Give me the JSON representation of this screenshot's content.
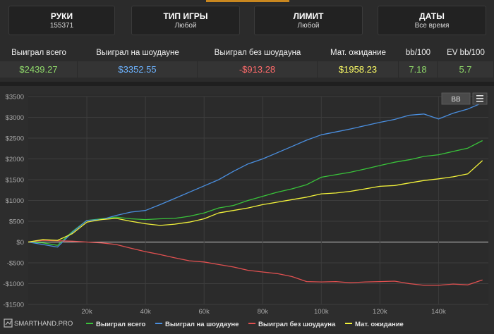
{
  "filters": [
    {
      "title": "РУКИ",
      "value": "155371"
    },
    {
      "title": "ТИП ИГРЫ",
      "value": "Любой"
    },
    {
      "title": "ЛИМИТ",
      "value": "Любой"
    },
    {
      "title": "ДАТЫ",
      "value": "Все время"
    }
  ],
  "stats": {
    "headers": [
      "Выиграл всего",
      "Выиграл на шоудауне",
      "Выиграл без шоудауна",
      "Мат. ожидание",
      "bb/100",
      "EV bb/100"
    ],
    "values": [
      "$2439.27",
      "$3352.55",
      "-$913.28",
      "$1958.23",
      "7.18",
      "5.7"
    ]
  },
  "toolbar": {
    "bb_label": "BB",
    "menu_icon": "menu-icon"
  },
  "branding": {
    "logo_text": "SMARTHAND.PRO"
  },
  "colors": {
    "green": "#39c33a",
    "blue": "#4a8fe0",
    "red": "#e05050",
    "yellow": "#f3f33a",
    "stat_green": "#8fd96a",
    "stat_blue": "#6db3ff",
    "stat_red": "#ff6b6b",
    "stat_yellow": "#ffff66"
  },
  "chart_data": {
    "type": "line",
    "title": "",
    "xlabel": "",
    "ylabel": "",
    "xlim": [
      0,
      157000
    ],
    "ylim": [
      -1500,
      3500
    ],
    "x_ticks": [
      20000,
      40000,
      60000,
      80000,
      100000,
      120000,
      140000
    ],
    "x_tick_labels": [
      "20k",
      "40k",
      "60k",
      "80k",
      "100k",
      "120k",
      "140k"
    ],
    "y_ticks": [
      3500,
      3000,
      2500,
      2000,
      1500,
      1000,
      500,
      0,
      -500,
      -1000,
      -1500
    ],
    "y_tick_labels": [
      "$3500",
      "$3000",
      "$2500",
      "$2000",
      "$1500",
      "$1000",
      "$500",
      "$0",
      "-$500",
      "-$1000",
      "-$1500"
    ],
    "grid": true,
    "legend_position": "bottom",
    "series": [
      {
        "name": "Выиграл всего",
        "color": "#39c33a",
        "x": [
          0,
          5000,
          10000,
          15000,
          20000,
          25000,
          30000,
          35000,
          40000,
          45000,
          50000,
          55000,
          60000,
          65000,
          70000,
          75000,
          80000,
          85000,
          90000,
          95000,
          100000,
          105000,
          110000,
          115000,
          120000,
          125000,
          130000,
          135000,
          140000,
          145000,
          150000,
          155000
        ],
        "y": [
          0,
          -20,
          -80,
          250,
          520,
          560,
          600,
          560,
          540,
          560,
          570,
          620,
          700,
          820,
          880,
          1000,
          1100,
          1200,
          1280,
          1380,
          1560,
          1620,
          1680,
          1760,
          1840,
          1920,
          1980,
          2060,
          2100,
          2180,
          2260,
          2440
        ]
      },
      {
        "name": "Выиграл на шоудауне",
        "color": "#4a8fe0",
        "x": [
          0,
          5000,
          10000,
          15000,
          20000,
          25000,
          30000,
          35000,
          40000,
          45000,
          50000,
          55000,
          60000,
          65000,
          70000,
          75000,
          80000,
          85000,
          90000,
          95000,
          100000,
          105000,
          110000,
          115000,
          120000,
          125000,
          130000,
          135000,
          140000,
          145000,
          150000,
          155000
        ],
        "y": [
          0,
          -60,
          -120,
          230,
          520,
          540,
          640,
          720,
          760,
          900,
          1050,
          1200,
          1350,
          1500,
          1700,
          1880,
          2000,
          2150,
          2300,
          2450,
          2580,
          2650,
          2720,
          2800,
          2880,
          2950,
          3050,
          3080,
          2960,
          3100,
          3200,
          3350
        ]
      },
      {
        "name": "Выиграл без шоудауна",
        "color": "#e05050",
        "x": [
          0,
          5000,
          10000,
          15000,
          20000,
          25000,
          30000,
          35000,
          40000,
          45000,
          50000,
          55000,
          60000,
          65000,
          70000,
          75000,
          80000,
          85000,
          90000,
          95000,
          100000,
          105000,
          110000,
          115000,
          120000,
          125000,
          130000,
          135000,
          140000,
          145000,
          150000,
          155000
        ],
        "y": [
          0,
          40,
          30,
          20,
          0,
          -20,
          -60,
          -150,
          -230,
          -300,
          -380,
          -450,
          -480,
          -540,
          -600,
          -680,
          -720,
          -760,
          -830,
          -950,
          -960,
          -950,
          -980,
          -960,
          -950,
          -940,
          -1000,
          -1040,
          -1040,
          -1010,
          -1030,
          -910
        ]
      },
      {
        "name": "Мат. ожидание",
        "color": "#f3f33a",
        "x": [
          0,
          5000,
          10000,
          15000,
          20000,
          25000,
          30000,
          35000,
          40000,
          45000,
          50000,
          55000,
          60000,
          65000,
          70000,
          75000,
          80000,
          85000,
          90000,
          95000,
          100000,
          105000,
          110000,
          115000,
          120000,
          125000,
          130000,
          135000,
          140000,
          145000,
          150000,
          155000
        ],
        "y": [
          0,
          60,
          40,
          200,
          480,
          540,
          570,
          500,
          440,
          400,
          430,
          480,
          560,
          700,
          760,
          820,
          900,
          960,
          1020,
          1080,
          1160,
          1180,
          1220,
          1280,
          1340,
          1360,
          1420,
          1480,
          1520,
          1570,
          1640,
          1960
        ]
      }
    ]
  }
}
